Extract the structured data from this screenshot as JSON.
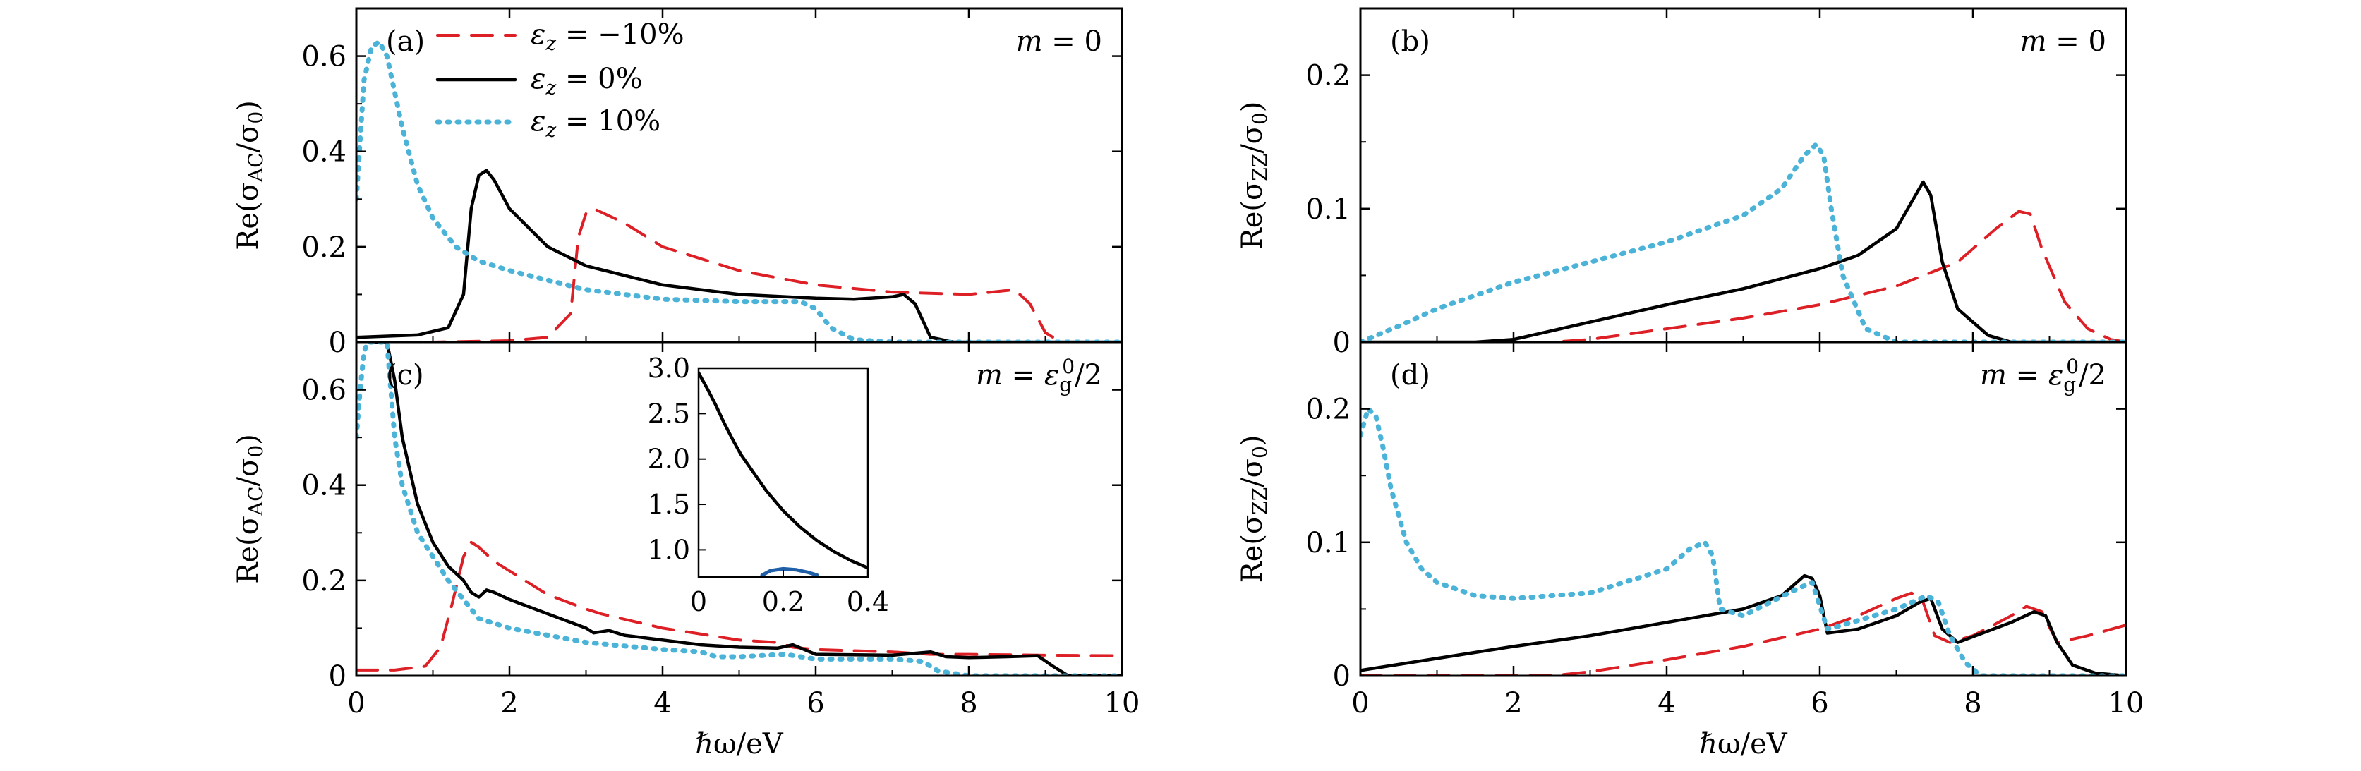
{
  "colors": {
    "neg": "#dd1f26",
    "zero": "#000000",
    "pos": "#4bb3d8",
    "inset_blue": "#1f5fa8"
  },
  "legend": [
    {
      "key": "neg",
      "label": "εz = −10%",
      "sym": "ε",
      "sub": "z",
      "rest": " = −10%"
    },
    {
      "key": "zero",
      "label": "εz = 0%",
      "sym": "ε",
      "sub": "z",
      "rest": " = 0%"
    },
    {
      "key": "pos",
      "label": "εz = 10%",
      "sym": "ε",
      "sub": "z",
      "rest": " = 10%"
    }
  ],
  "xlabel": "ℏω/eV",
  "chart_data": [
    {
      "type": "line",
      "panel": "a",
      "label": "(a)",
      "mass_label": "m = 0",
      "ylabel": "Re(σAC/σ0)",
      "xlim": [
        0,
        10
      ],
      "ylim": [
        0,
        0.7
      ],
      "xticks": [
        0,
        2,
        4,
        6,
        8,
        10
      ],
      "yticks": [
        0,
        0.2,
        0.4,
        0.6
      ],
      "series": [
        {
          "name": "εz = −10%",
          "key": "neg",
          "x": [
            0,
            1,
            2,
            2.5,
            2.8,
            2.9,
            3.0,
            3.1,
            3.5,
            4,
            5,
            6,
            7,
            8,
            8.6,
            8.8,
            9,
            9.2,
            10
          ],
          "y": [
            0,
            0,
            0.003,
            0.01,
            0.06,
            0.22,
            0.27,
            0.28,
            0.25,
            0.2,
            0.15,
            0.12,
            0.105,
            0.1,
            0.11,
            0.08,
            0.02,
            0,
            0
          ]
        },
        {
          "name": "εz = 0%",
          "key": "zero",
          "x": [
            0,
            0.8,
            1.2,
            1.4,
            1.5,
            1.6,
            1.7,
            1.8,
            2,
            2.5,
            3,
            4,
            5,
            6,
            6.5,
            7,
            7.15,
            7.3,
            7.5,
            7.8,
            10
          ],
          "y": [
            0.01,
            0.015,
            0.03,
            0.1,
            0.28,
            0.35,
            0.36,
            0.34,
            0.28,
            0.2,
            0.16,
            0.12,
            0.1,
            0.092,
            0.09,
            0.095,
            0.1,
            0.08,
            0.01,
            0,
            0
          ]
        },
        {
          "name": "εz = 10%",
          "key": "pos",
          "x": [
            0,
            0.1,
            0.2,
            0.3,
            0.4,
            0.6,
            0.8,
            1,
            1.3,
            1.6,
            2,
            3,
            4,
            5,
            5.8,
            6,
            6.2,
            6.5,
            7,
            10
          ],
          "y": [
            0.3,
            0.55,
            0.62,
            0.63,
            0.6,
            0.45,
            0.33,
            0.26,
            0.2,
            0.17,
            0.15,
            0.11,
            0.09,
            0.085,
            0.085,
            0.07,
            0.03,
            0.005,
            0,
            0
          ]
        }
      ]
    },
    {
      "type": "line",
      "panel": "b",
      "label": "(b)",
      "mass_label": "m = 0",
      "ylabel": "Re(σZZ/σ0)",
      "xlim": [
        0,
        10
      ],
      "ylim": [
        0,
        0.25
      ],
      "xticks": [
        0,
        2,
        4,
        6,
        8,
        10
      ],
      "yticks": [
        0,
        0.1,
        0.2
      ],
      "series": [
        {
          "name": "εz = −10%",
          "key": "neg",
          "x": [
            0,
            2.5,
            3,
            4,
            5,
            6,
            7,
            7.8,
            8.3,
            8.6,
            8.75,
            8.9,
            9.2,
            9.5,
            9.8,
            10
          ],
          "y": [
            0,
            0,
            0.002,
            0.01,
            0.018,
            0.028,
            0.042,
            0.06,
            0.085,
            0.098,
            0.096,
            0.07,
            0.03,
            0.01,
            0.002,
            0
          ]
        },
        {
          "name": "εz = 0%",
          "key": "zero",
          "x": [
            0,
            1.5,
            2,
            3,
            4,
            5,
            6,
            6.5,
            7,
            7.2,
            7.35,
            7.45,
            7.6,
            7.8,
            8.2,
            8.5,
            10
          ],
          "y": [
            0,
            0,
            0.002,
            0.015,
            0.028,
            0.04,
            0.055,
            0.065,
            0.085,
            0.105,
            0.12,
            0.11,
            0.06,
            0.025,
            0.005,
            0,
            0
          ]
        },
        {
          "name": "εz = 10%",
          "key": "pos",
          "x": [
            0,
            0.5,
            1,
            1.5,
            2,
            3,
            4,
            5,
            5.5,
            5.8,
            5.95,
            6.05,
            6.15,
            6.3,
            6.6,
            7,
            10
          ],
          "y": [
            0,
            0.012,
            0.025,
            0.035,
            0.045,
            0.06,
            0.075,
            0.095,
            0.115,
            0.14,
            0.148,
            0.14,
            0.1,
            0.05,
            0.01,
            0,
            0
          ]
        }
      ]
    },
    {
      "type": "line",
      "panel": "c",
      "label": "(c)",
      "mass_label": "m = εg0/2",
      "ylabel": "Re(σAC/σ0)",
      "xlim": [
        0,
        10
      ],
      "ylim": [
        0,
        0.7
      ],
      "xticks": [
        0,
        2,
        4,
        6,
        8,
        10
      ],
      "xticklabels": [
        "0",
        "2",
        "4",
        "6",
        "8",
        "10"
      ],
      "yticks": [
        0,
        0.2,
        0.4,
        0.6
      ],
      "series": [
        {
          "name": "εz = −10%",
          "key": "neg",
          "x": [
            0,
            0.5,
            0.9,
            1.1,
            1.25,
            1.4,
            1.5,
            1.6,
            1.8,
            2,
            2.5,
            3,
            3.2,
            4,
            5,
            5.5,
            5.7,
            6,
            7,
            7.5,
            8,
            9,
            10
          ],
          "y": [
            0.012,
            0.012,
            0.02,
            0.06,
            0.15,
            0.25,
            0.28,
            0.27,
            0.24,
            0.22,
            0.17,
            0.14,
            0.13,
            0.1,
            0.075,
            0.07,
            0.06,
            0.055,
            0.05,
            0.045,
            0.045,
            0.043,
            0.042
          ]
        },
        {
          "name": "εz = 0%",
          "key": "zero",
          "x": [
            0.25,
            0.3,
            0.35,
            0.4,
            0.5,
            0.6,
            0.8,
            1,
            1.2,
            1.4,
            1.5,
            1.6,
            1.7,
            1.8,
            2,
            2.5,
            3,
            3.1,
            3.3,
            3.5,
            4,
            4.5,
            5,
            5.5,
            5.7,
            6,
            7,
            7.5,
            7.7,
            8,
            8.5,
            8.9,
            9.1,
            9.3,
            10
          ],
          "y": [
            0.7,
            0.7,
            0.7,
            0.7,
            0.62,
            0.5,
            0.36,
            0.28,
            0.23,
            0.2,
            0.175,
            0.165,
            0.18,
            0.175,
            0.16,
            0.13,
            0.1,
            0.09,
            0.095,
            0.085,
            0.075,
            0.065,
            0.06,
            0.058,
            0.065,
            0.045,
            0.043,
            0.05,
            0.04,
            0.038,
            0.04,
            0.042,
            0.02,
            0,
            0
          ]
        },
        {
          "name": "εz = 10%",
          "key": "pos",
          "x": [
            0,
            0.05,
            0.1,
            0.15,
            0.25,
            0.4,
            0.5,
            0.6,
            0.8,
            1,
            1.2,
            1.4,
            1.6,
            2,
            3,
            4,
            4.5,
            4.7,
            5,
            5.6,
            5.8,
            6,
            7,
            7.4,
            7.6,
            8,
            10
          ],
          "y": [
            0.5,
            0.6,
            0.68,
            0.7,
            0.7,
            0.7,
            0.5,
            0.4,
            0.3,
            0.25,
            0.2,
            0.16,
            0.12,
            0.1,
            0.07,
            0.055,
            0.05,
            0.04,
            0.04,
            0.045,
            0.04,
            0.035,
            0.035,
            0.03,
            0.01,
            0,
            0
          ]
        }
      ],
      "inset": {
        "xlim": [
          0,
          0.4
        ],
        "ylim": [
          0.7,
          3.0
        ],
        "xticks": [
          0,
          0.2,
          0.4
        ],
        "xticklabels": [
          "0",
          "0.2",
          "0.4"
        ],
        "yticks": [
          1.0,
          1.5,
          2.0,
          2.5,
          3.0
        ],
        "yticklabels": [
          "1.0",
          "1.5",
          "2.0",
          "2.5",
          "3.0"
        ],
        "series": [
          {
            "name": "εz = 0% (zoom)",
            "key": "zero",
            "x": [
              0,
              0.02,
              0.04,
              0.06,
              0.08,
              0.1,
              0.13,
              0.16,
              0.2,
              0.24,
              0.28,
              0.32,
              0.36,
              0.4
            ],
            "y": [
              2.95,
              2.78,
              2.6,
              2.4,
              2.22,
              2.05,
              1.85,
              1.65,
              1.43,
              1.25,
              1.1,
              0.98,
              0.88,
              0.8
            ]
          },
          {
            "name": "εz = −10% (zoom)",
            "key": "inset_blue",
            "x": [
              0.15,
              0.17,
              0.2,
              0.23,
              0.26,
              0.28
            ],
            "y": [
              0.72,
              0.77,
              0.79,
              0.78,
              0.75,
              0.72
            ]
          }
        ]
      }
    },
    {
      "type": "line",
      "panel": "d",
      "label": "(d)",
      "mass_label": "m = εg0/2",
      "ylabel": "Re(σZZ/σ0)",
      "xlim": [
        0,
        10
      ],
      "ylim": [
        0,
        0.25
      ],
      "xticks": [
        0,
        2,
        4,
        6,
        8,
        10
      ],
      "xticklabels": [
        "0",
        "2",
        "4",
        "6",
        "8",
        "10"
      ],
      "yticks": [
        0,
        0.1,
        0.2
      ],
      "series": [
        {
          "name": "εz = −10%",
          "key": "neg",
          "x": [
            0,
            2.5,
            3,
            4,
            5,
            6,
            6.5,
            7,
            7.2,
            7.35,
            7.5,
            7.7,
            8,
            8.5,
            8.7,
            8.9,
            9.1,
            9.5,
            10
          ],
          "y": [
            0,
            0,
            0.003,
            0.012,
            0.022,
            0.035,
            0.045,
            0.058,
            0.062,
            0.055,
            0.03,
            0.025,
            0.03,
            0.045,
            0.052,
            0.048,
            0.025,
            0.03,
            0.038
          ]
        },
        {
          "name": "εz = 0%",
          "key": "zero",
          "x": [
            0,
            1,
            2,
            3,
            4,
            5,
            5.5,
            5.8,
            5.9,
            6,
            6.1,
            6.5,
            7,
            7.3,
            7.45,
            7.6,
            7.8,
            8.5,
            8.8,
            8.95,
            9.1,
            9.3,
            9.6,
            10
          ],
          "y": [
            0.004,
            0.013,
            0.022,
            0.03,
            0.04,
            0.05,
            0.06,
            0.075,
            0.073,
            0.06,
            0.032,
            0.035,
            0.045,
            0.055,
            0.058,
            0.035,
            0.025,
            0.04,
            0.048,
            0.045,
            0.025,
            0.008,
            0.002,
            0
          ]
        },
        {
          "name": "εz = 10%",
          "key": "pos",
          "x": [
            0,
            0.05,
            0.1,
            0.2,
            0.3,
            0.4,
            0.6,
            0.8,
            1,
            1.5,
            2,
            3,
            4,
            4.3,
            4.5,
            4.6,
            4.7,
            5,
            5.7,
            5.9,
            6.1,
            6.3,
            7,
            7.4,
            7.55,
            7.7,
            7.9,
            8.1,
            10
          ],
          "y": [
            0.18,
            0.19,
            0.2,
            0.195,
            0.17,
            0.14,
            0.1,
            0.08,
            0.07,
            0.06,
            0.058,
            0.062,
            0.08,
            0.095,
            0.1,
            0.09,
            0.05,
            0.045,
            0.065,
            0.07,
            0.035,
            0.038,
            0.05,
            0.06,
            0.055,
            0.03,
            0.01,
            0,
            0
          ]
        }
      ]
    }
  ]
}
